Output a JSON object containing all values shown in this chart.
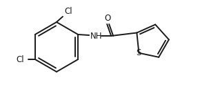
{
  "bg_color": "#ffffff",
  "line_color": "#1a1a1a",
  "line_width": 1.4,
  "font_size_label": 8.5,
  "ring_centers": {
    "benzene": [
      82,
      74
    ],
    "thiophene": [
      220,
      82
    ]
  },
  "ring_radii": {
    "benzene": 36,
    "thiophene": 25
  },
  "labels": {
    "Cl_top": "Cl",
    "Cl_left": "Cl",
    "O": "O",
    "NH": "NH",
    "S": "S"
  }
}
